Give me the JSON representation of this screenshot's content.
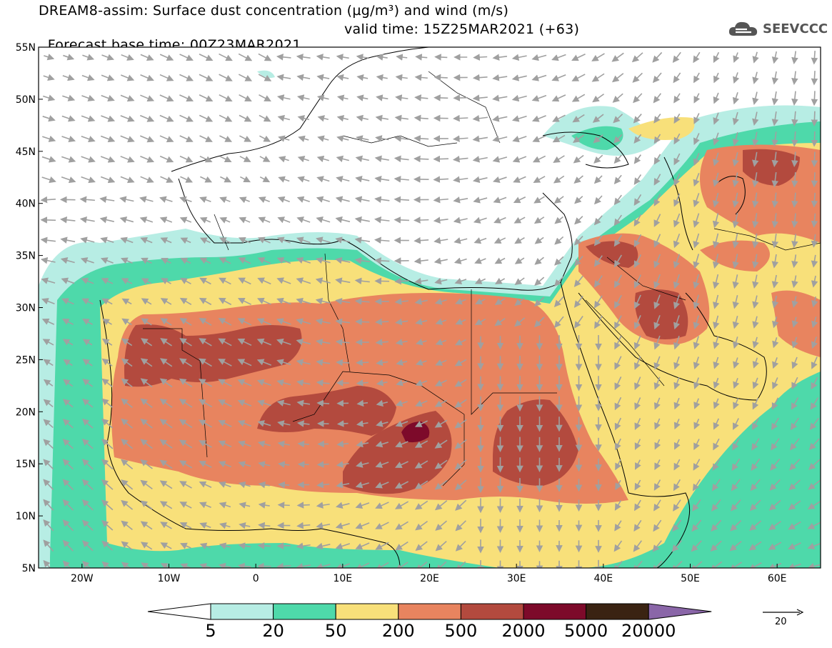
{
  "header": {
    "title_line1": "DREAM8-assim: Surface dust concentration (µg/m³) and wind (m/s)",
    "title_line2_base": "Forecast base time: 00Z23MAR2021",
    "title_line2_valid": "valid time: 15Z25MAR2021 (+63)"
  },
  "logo": {
    "text": "SEEVCCC",
    "icon": "cloud-icon"
  },
  "map": {
    "lon_range": [
      -25,
      65
    ],
    "lat_range": [
      5,
      55
    ],
    "lat_labels": [
      "55N",
      "50N",
      "45N",
      "40N",
      "35N",
      "30N",
      "25N",
      "20N",
      "15N",
      "10N",
      "5N"
    ],
    "lon_labels": [
      "20W",
      "10W",
      "0",
      "10E",
      "20E",
      "30E",
      "40E",
      "50E",
      "60E"
    ],
    "wind_arrow_color": "#a0a0a0",
    "coastline_color": "#000000"
  },
  "colorbar": {
    "labels": [
      "5",
      "20",
      "50",
      "200",
      "500",
      "2000",
      "5000",
      "20000"
    ],
    "colors": [
      "#ffffff",
      "#b7ede4",
      "#4ed9aa",
      "#f8e07a",
      "#e8845f",
      "#b34a3e",
      "#7d0a2a",
      "#3a2312",
      "#8a66a8"
    ]
  },
  "wind_legend": {
    "value": "20"
  }
}
